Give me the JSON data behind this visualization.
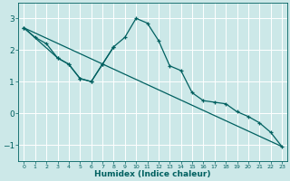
{
  "xlabel": "Humidex (Indice chaleur)",
  "ylabel": "",
  "xlim": [
    -0.5,
    23.5
  ],
  "ylim": [
    -1.5,
    3.5
  ],
  "yticks": [
    -1,
    0,
    1,
    2,
    3
  ],
  "xticks": [
    0,
    1,
    2,
    3,
    4,
    5,
    6,
    7,
    8,
    9,
    10,
    11,
    12,
    13,
    14,
    15,
    16,
    17,
    18,
    19,
    20,
    21,
    22,
    23
  ],
  "bg_color": "#cce8e8",
  "line_color": "#006060",
  "grid_color": "#ffffff",
  "series1_x": [
    0,
    1,
    2,
    3,
    4,
    5,
    6,
    7,
    8,
    9,
    10,
    11,
    12,
    13,
    14,
    15,
    16,
    17,
    18,
    19,
    20,
    21,
    22,
    23
  ],
  "series1_y": [
    2.7,
    2.4,
    2.2,
    1.75,
    1.55,
    1.1,
    1.0,
    1.55,
    2.1,
    2.4,
    3.0,
    2.85,
    2.3,
    1.5,
    1.35,
    0.65,
    0.4,
    0.35,
    0.3,
    0.05,
    -0.1,
    -0.3,
    -0.6,
    -1.05
  ],
  "series2_x": [
    0,
    3,
    4,
    5,
    6,
    7,
    8
  ],
  "series2_y": [
    2.7,
    1.75,
    1.55,
    1.1,
    1.0,
    1.55,
    2.1
  ],
  "series3_x": [
    0,
    23
  ],
  "series3_y": [
    2.7,
    -1.05
  ]
}
